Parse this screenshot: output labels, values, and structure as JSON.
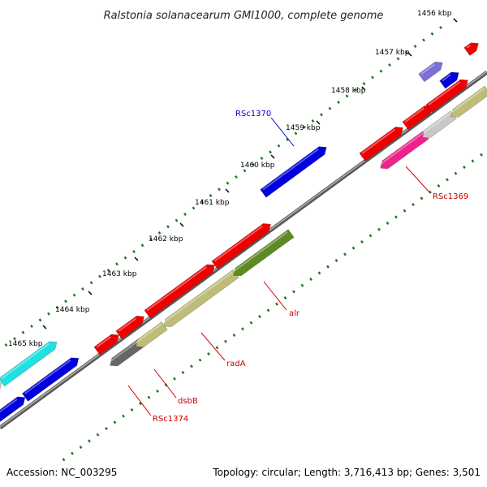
{
  "title": "Ralstonia solanacearum GMI1000, complete genome",
  "footer": {
    "accession": "Accession: NC_003295",
    "topology": "Topology: circular; Length: 3,716,413 bp; Genes: 3,501"
  },
  "ticks": [
    {
      "label": "1456 kbp"
    },
    {
      "label": "1457 kbp"
    },
    {
      "label": "1458 kbp"
    },
    {
      "label": "1459 kbp"
    },
    {
      "label": "1460 kbp"
    },
    {
      "label": "1461 kbp"
    },
    {
      "label": "1462 kbp"
    },
    {
      "label": "1463 kbp"
    },
    {
      "label": "1464 kbp"
    },
    {
      "label": "1465 kbp"
    }
  ],
  "gene_labels": [
    {
      "name": "RSc1370",
      "color": "#0000cc"
    },
    {
      "name": "RSc1369",
      "color": "#cc0000"
    },
    {
      "name": "alr",
      "color": "#cc0000"
    },
    {
      "name": "radA",
      "color": "#cc0000"
    },
    {
      "name": "dsbB",
      "color": "#cc0000"
    },
    {
      "name": "RSc1374",
      "color": "#cc0000"
    }
  ],
  "colors": {
    "backbone": "#7d7d7d",
    "tick_dot": "#1a7a1a",
    "red": "#ee0000",
    "blue": "#0000dd",
    "olive": "#bdbd78",
    "dark_olive": "#5e8a22",
    "pink": "#ee2288",
    "grey": "#c8c8c8",
    "dark_grey": "#666666",
    "cyan": "#22e0e0",
    "lavender": "#7b6fd6"
  }
}
